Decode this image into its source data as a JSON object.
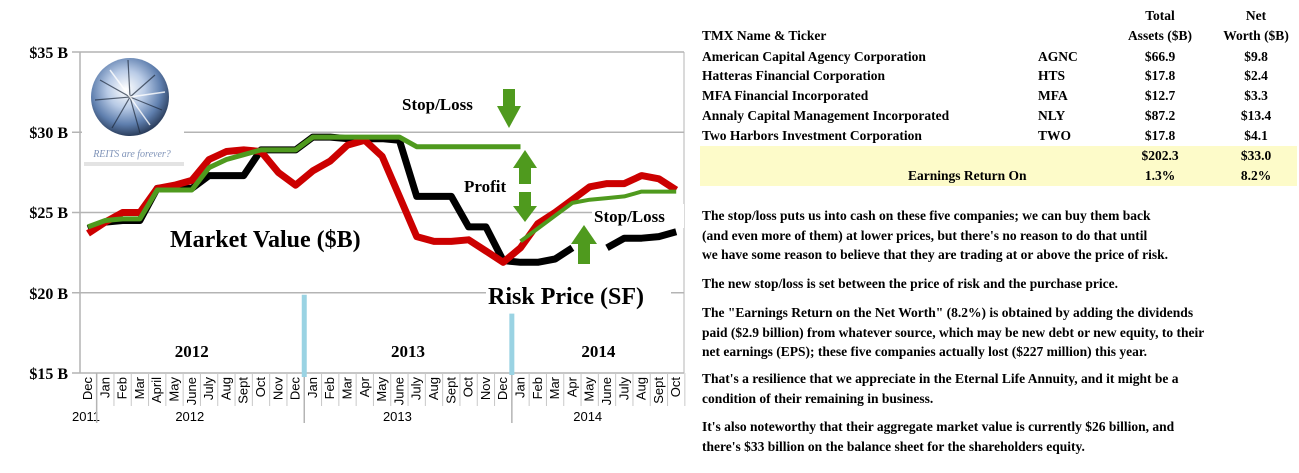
{
  "chart_data": {
    "type": "line",
    "title": "",
    "xlabel": "",
    "ylabel": "",
    "ylim": [
      15,
      35
    ],
    "yticks": [
      {
        "value": 35,
        "label": "$35 B"
      },
      {
        "value": 30,
        "label": "$30 B"
      },
      {
        "value": 25,
        "label": "$25 B"
      },
      {
        "value": 20,
        "label": "$20 B"
      },
      {
        "value": 15,
        "label": "$15 B"
      }
    ],
    "grid": true,
    "categories": [
      "Dec",
      "Jan",
      "Feb",
      "Mar",
      "April",
      "May",
      "June",
      "July",
      "Aug",
      "Sept",
      "Oct",
      "Nov",
      "Dec",
      "Jan",
      "Feb",
      "Mar",
      "Apr",
      "May",
      "June",
      "July",
      "Aug",
      "Sept",
      "Oct",
      "Nov",
      "Dec",
      "Jan",
      "Feb",
      "Mar",
      "Apr",
      "May",
      "June",
      "July",
      "Aug",
      "Sept",
      "Oct"
    ],
    "year_labels": [
      {
        "label": "2011",
        "index": 0
      },
      {
        "label": "2012",
        "index": 6
      },
      {
        "label": "2013",
        "index": 18
      },
      {
        "label": "2014",
        "index": 29
      }
    ],
    "year_dividers": [
      0.5,
      12.5,
      24.5
    ],
    "section_labels": [
      {
        "label": "2012",
        "index": 6
      },
      {
        "label": "2013",
        "index": 18.5
      },
      {
        "label": "2014",
        "index": 29.5
      }
    ],
    "series": [
      {
        "name": "Market Value ($B)",
        "color": "#cc0000",
        "values": [
          23.7,
          24.4,
          25.0,
          25.0,
          26.5,
          26.7,
          27.0,
          28.3,
          28.8,
          28.9,
          28.8,
          27.5,
          26.7,
          27.6,
          28.2,
          29.2,
          29.5,
          28.5,
          26.0,
          23.5,
          23.2,
          23.2,
          23.3,
          22.6,
          21.9,
          22.8,
          24.3,
          25.0,
          25.8,
          26.6,
          26.8,
          26.8,
          27.3,
          27.1,
          26.4
        ]
      },
      {
        "name": "Risk Price (SF)",
        "color": "#000000",
        "values": [
          24.0,
          24.4,
          24.5,
          24.5,
          26.5,
          26.5,
          26.5,
          27.3,
          27.3,
          27.3,
          28.9,
          28.9,
          28.9,
          29.7,
          29.7,
          29.6,
          29.6,
          29.6,
          29.5,
          26.0,
          26.0,
          26.0,
          24.1,
          24.1,
          22.0,
          21.9,
          21.9,
          22.1,
          22.8,
          null,
          22.8,
          23.4,
          23.4,
          23.5,
          23.8
        ]
      },
      {
        "name": "Stop/Loss",
        "color": "#4f9a1e",
        "values": [
          24.1,
          24.5,
          24.6,
          24.6,
          26.4,
          26.4,
          26.4,
          27.8,
          28.3,
          28.6,
          28.9,
          28.9,
          28.9,
          29.7,
          29.7,
          29.7,
          29.7,
          29.7,
          29.7,
          29.1,
          29.1,
          29.1,
          29.1,
          29.1,
          29.1,
          29.1,
          null,
          null,
          null,
          null,
          null,
          null,
          null,
          null,
          null
        ]
      },
      {
        "name": "New Stop/Loss",
        "color": "#4f9a1e",
        "values": [
          null,
          null,
          null,
          null,
          null,
          null,
          null,
          null,
          null,
          null,
          null,
          null,
          null,
          null,
          null,
          null,
          null,
          null,
          null,
          null,
          null,
          null,
          null,
          null,
          null,
          23.2,
          24.0,
          24.8,
          25.6,
          25.8,
          25.9,
          26.0,
          26.3,
          26.3,
          26.3
        ]
      }
    ],
    "annotations": {
      "market_value": "Market Value ($B)",
      "risk_price": "Risk Price (SF)",
      "stop_loss_top": "Stop/Loss",
      "profit": "Profit",
      "stop_loss_right": "Stop/Loss",
      "diamond_caption": "REITS are forever?"
    }
  },
  "table": {
    "headers": {
      "name": "TMX Name & Ticker",
      "assets_line1": "Total",
      "assets_line2": "Assets ($B)",
      "net_line1": "Net",
      "net_line2": "Worth ($B)"
    },
    "rows": [
      {
        "name": "American Capital Agency Corporation",
        "ticker": "AGNC",
        "assets": "$66.9",
        "net": "$9.8"
      },
      {
        "name": "Hatteras Financial Corporation",
        "ticker": "HTS",
        "assets": "$17.8",
        "net": "$2.4"
      },
      {
        "name": "MFA Financial Incorporated",
        "ticker": "MFA",
        "assets": "$12.7",
        "net": "$3.3"
      },
      {
        "name": "Annaly Capital Management Incorporated",
        "ticker": "NLY",
        "assets": "$87.2",
        "net": "$13.4"
      },
      {
        "name": "Two Harbors Investment Corporation",
        "ticker": "TWO",
        "assets": "$17.8",
        "net": "$4.1"
      }
    ],
    "totals": {
      "assets": "$202.3",
      "net": "$33.0"
    },
    "earnings": {
      "label": "Earnings Return On",
      "assets": "1.3%",
      "net": "8.2%"
    },
    "highlight_color": "#fdfbc9"
  },
  "paragraphs": [
    "The stop/loss puts us into cash on these five companies; we can buy them back\n(and even more of them) at lower prices, but there's no reason to do that until\n we have some reason to believe that they are trading at or above the price of risk.",
    " The new stop/loss is set between the price of risk and the purchase price.",
    " The \"Earnings Return on the Net Worth\" (8.2%) is obtained by adding the dividends\n paid ($2.9 billion) from whatever source, which may be new debt or new equity, to their\n net earnings (EPS); these five companies actually lost ($227 million) this year.",
    " That's a resilience that we appreciate in the Eternal Life Annuity, and it might be a\n condition of their remaining in business.",
    "  It's also noteworthy that their aggregate market value is currently $26 billion, and\n  there's $33 billion on the balance sheet for the shareholders equity."
  ]
}
